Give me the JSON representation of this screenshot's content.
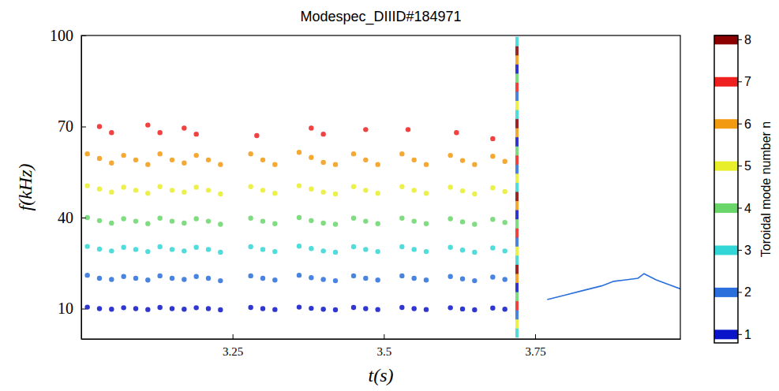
{
  "chart_data": {
    "type": "scatter",
    "title": "Modespec_DIIID#184971",
    "x_label": "t(s)",
    "y_label": "f(kHz)",
    "xlim": [
      3.0,
      3.99
    ],
    "ylim": [
      0,
      100
    ],
    "xticks": [
      3.25,
      3.5,
      3.75
    ],
    "yticks": [
      10,
      40,
      70,
      100
    ],
    "grid": false,
    "marker": "circle",
    "colorbar": {
      "label": "Toroidal mode number n",
      "range": [
        0.8,
        8.1
      ],
      "ticks": [
        1,
        2,
        3,
        4,
        5,
        6,
        7,
        8
      ],
      "colors": [
        "#0a14c8",
        "#2a6fdc",
        "#33d6d6",
        "#6ad66a",
        "#e8ee2a",
        "#f29a12",
        "#ee2020",
        "#8b0000"
      ]
    },
    "series": [
      {
        "n": 1,
        "x": [
          3.01,
          3.03,
          3.05,
          3.07,
          3.09,
          3.11,
          3.13,
          3.15,
          3.17,
          3.19,
          3.21,
          3.23,
          3.28,
          3.3,
          3.32,
          3.36,
          3.38,
          3.4,
          3.42,
          3.45,
          3.47,
          3.49,
          3.53,
          3.55,
          3.57,
          3.61,
          3.63,
          3.65,
          3.68,
          3.7
        ],
        "values": [
          10.5,
          10,
          9.8,
          10.3,
          10,
          9.7,
          10.4,
          10,
          9.8,
          10.3,
          10,
          9.6,
          10.4,
          10,
          9.7,
          10.5,
          10.1,
          9.8,
          9.6,
          10.4,
          10,
          9.7,
          10.4,
          10,
          9.7,
          10.3,
          9.9,
          9.6,
          10.2,
          9.8
        ]
      },
      {
        "n": 2,
        "x": [
          3.01,
          3.03,
          3.05,
          3.07,
          3.09,
          3.11,
          3.13,
          3.15,
          3.17,
          3.19,
          3.21,
          3.23,
          3.28,
          3.3,
          3.32,
          3.36,
          3.38,
          3.4,
          3.42,
          3.45,
          3.47,
          3.49,
          3.53,
          3.55,
          3.57,
          3.61,
          3.63,
          3.65,
          3.68,
          3.7
        ],
        "values": [
          21,
          20,
          19.6,
          20.6,
          20,
          19.4,
          20.8,
          20,
          19.6,
          20.6,
          20,
          19.2,
          20.8,
          20,
          19.4,
          21,
          20.2,
          19.6,
          19.2,
          20.8,
          20,
          19.4,
          20.8,
          20,
          19.4,
          20.6,
          19.8,
          19.2,
          20.4,
          19.6
        ]
      },
      {
        "n": 3,
        "x": [
          3.01,
          3.03,
          3.05,
          3.07,
          3.09,
          3.11,
          3.13,
          3.15,
          3.17,
          3.19,
          3.21,
          3.23,
          3.28,
          3.3,
          3.32,
          3.36,
          3.38,
          3.4,
          3.42,
          3.45,
          3.47,
          3.49,
          3.53,
          3.55,
          3.57,
          3.61,
          3.63,
          3.65,
          3.68,
          3.7
        ],
        "values": [
          30.5,
          29.6,
          29,
          30.2,
          29.5,
          28.8,
          30.4,
          29.5,
          29,
          30.2,
          29.5,
          28.6,
          30.4,
          29.5,
          28.8,
          30.6,
          29.8,
          29,
          28.6,
          30.4,
          29.5,
          28.8,
          30.4,
          29.5,
          28.8,
          30.2,
          29.3,
          28.6,
          30,
          29
        ]
      },
      {
        "n": 4,
        "x": [
          3.01,
          3.03,
          3.05,
          3.07,
          3.09,
          3.11,
          3.13,
          3.15,
          3.17,
          3.19,
          3.21,
          3.23,
          3.28,
          3.3,
          3.32,
          3.36,
          3.38,
          3.4,
          3.42,
          3.45,
          3.47,
          3.49,
          3.53,
          3.55,
          3.57,
          3.61,
          3.63,
          3.65,
          3.68,
          3.7
        ],
        "values": [
          40,
          39,
          38.2,
          39.6,
          38.8,
          38,
          39.8,
          38.8,
          38.2,
          39.6,
          38.8,
          37.8,
          39.8,
          38.8,
          38,
          40,
          39,
          38.2,
          37.8,
          39.8,
          38.8,
          38,
          39.8,
          38.8,
          38,
          39.6,
          38.6,
          37.8,
          39.4,
          38.4
        ]
      },
      {
        "n": 5,
        "x": [
          3.01,
          3.03,
          3.05,
          3.07,
          3.09,
          3.11,
          3.13,
          3.15,
          3.17,
          3.19,
          3.21,
          3.23,
          3.28,
          3.3,
          3.32,
          3.36,
          3.38,
          3.4,
          3.42,
          3.45,
          3.47,
          3.49,
          3.53,
          3.55,
          3.57,
          3.61,
          3.63,
          3.65,
          3.68,
          3.7
        ],
        "values": [
          50.5,
          49.4,
          48.4,
          50,
          49,
          48,
          50.2,
          49,
          48.4,
          50,
          49,
          47.8,
          50.2,
          49,
          48,
          50.5,
          49.4,
          48.4,
          47.8,
          50.2,
          49,
          48,
          50.2,
          49,
          48,
          50,
          48.8,
          47.8,
          49.8,
          48.6
        ]
      },
      {
        "n": 6,
        "x": [
          3.01,
          3.03,
          3.05,
          3.07,
          3.09,
          3.11,
          3.13,
          3.15,
          3.17,
          3.19,
          3.21,
          3.23,
          3.28,
          3.3,
          3.32,
          3.36,
          3.38,
          3.4,
          3.42,
          3.45,
          3.47,
          3.49,
          3.53,
          3.55,
          3.57,
          3.61,
          3.63,
          3.65,
          3.68,
          3.7
        ],
        "values": [
          61,
          59.5,
          58,
          60.5,
          59,
          57.5,
          61,
          59,
          58,
          60.5,
          59,
          57.5,
          61,
          59,
          57.5,
          61.5,
          59.8,
          58.2,
          57.5,
          61,
          59,
          57.5,
          61,
          59,
          57.5,
          60.5,
          58.8,
          57.5,
          60.2,
          58.5
        ]
      },
      {
        "n": 7,
        "x": [
          3.03,
          3.05,
          3.11,
          3.13,
          3.17,
          3.19,
          3.29,
          3.38,
          3.4,
          3.47,
          3.54,
          3.62,
          3.68
        ],
        "values": [
          70,
          68,
          70.5,
          68,
          69.5,
          67.5,
          67,
          69.5,
          67.5,
          69,
          69,
          68,
          66
        ]
      },
      {
        "marker": "square",
        "x": [
          3.72,
          3.72,
          3.72,
          3.72,
          3.72,
          3.72,
          3.72,
          3.72,
          3.72,
          3.72,
          3.72,
          3.72,
          3.72,
          3.72,
          3.72,
          3.72,
          3.72,
          3.72,
          3.72,
          3.72,
          3.72,
          3.72,
          3.72,
          3.72,
          3.72,
          3.72,
          3.72,
          3.72,
          3.72,
          3.72,
          3.72,
          3.72,
          3.72
        ],
        "values": [
          2,
          5,
          8,
          11,
          14,
          17,
          20,
          23,
          26,
          29,
          32,
          35,
          38,
          41,
          44,
          47,
          50,
          53,
          56,
          59,
          62,
          65,
          68,
          71,
          74,
          77,
          80,
          83,
          86,
          89,
          92,
          95,
          98
        ],
        "colors": [
          "#33d6d6",
          "#e8ee2a",
          "#2a6fdc",
          "#ee2020",
          "#6ad66a",
          "#0a14c8",
          "#f29a12",
          "#8b0000",
          "#33d6d6",
          "#e8ee2a",
          "#2a6fdc",
          "#ee2020",
          "#6ad66a",
          "#0a14c8",
          "#f29a12",
          "#8b0000",
          "#33d6d6",
          "#e8ee2a",
          "#2a6fdc",
          "#ee2020",
          "#6ad66a",
          "#0a14c8",
          "#f29a12",
          "#8b0000",
          "#33d6d6",
          "#e8ee2a",
          "#2a6fdc",
          "#ee2020",
          "#6ad66a",
          "#0a14c8",
          "#f29a12",
          "#8b0000",
          "#33d6d6"
        ]
      },
      {
        "n": 2,
        "type": "line",
        "x": [
          3.77,
          3.8,
          3.83,
          3.86,
          3.88,
          3.9,
          3.92,
          3.93,
          3.95,
          3.97,
          3.99
        ],
        "values": [
          13,
          14.5,
          16,
          17.5,
          19,
          19.5,
          20,
          21.5,
          19.5,
          18,
          16.5
        ]
      }
    ]
  }
}
